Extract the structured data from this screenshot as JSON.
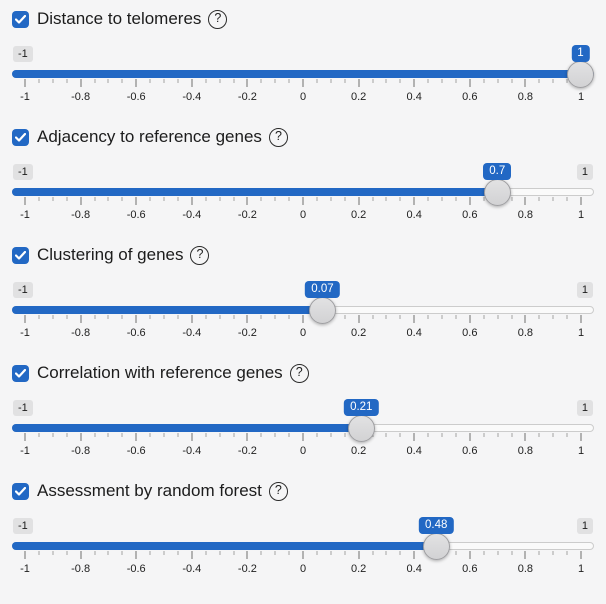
{
  "page": {
    "background_color": "#f5f5f6",
    "accent_color": "#2268c4"
  },
  "grid_labels": [
    "-1",
    "-0.8",
    "-0.6",
    "-0.4",
    "-0.2",
    "0",
    "0.2",
    "0.4",
    "0.6",
    "0.8",
    "1"
  ],
  "icons": {
    "help_glyph": "?",
    "checkbox_check": "check-icon"
  },
  "sliders": [
    {
      "label": "Distance to telomeres",
      "checked": true,
      "min": -1,
      "max": 1,
      "value": 1,
      "value_label": "1",
      "min_label": "-1",
      "max_label": "1",
      "max_label_visible": false
    },
    {
      "label": "Adjacency to reference genes",
      "checked": true,
      "min": -1,
      "max": 1,
      "value": 0.7,
      "value_label": "0.7",
      "min_label": "-1",
      "max_label": "1",
      "max_label_visible": true
    },
    {
      "label": "Clustering of genes",
      "checked": true,
      "min": -1,
      "max": 1,
      "value": 0.07,
      "value_label": "0.07",
      "min_label": "-1",
      "max_label": "1",
      "max_label_visible": true
    },
    {
      "label": "Correlation with reference genes",
      "checked": true,
      "min": -1,
      "max": 1,
      "value": 0.21,
      "value_label": "0.21",
      "min_label": "-1",
      "max_label": "1",
      "max_label_visible": true
    },
    {
      "label": "Assessment by random forest",
      "checked": true,
      "min": -1,
      "max": 1,
      "value": 0.48,
      "value_label": "0.48",
      "min_label": "-1",
      "max_label": "1",
      "max_label_visible": true
    }
  ]
}
